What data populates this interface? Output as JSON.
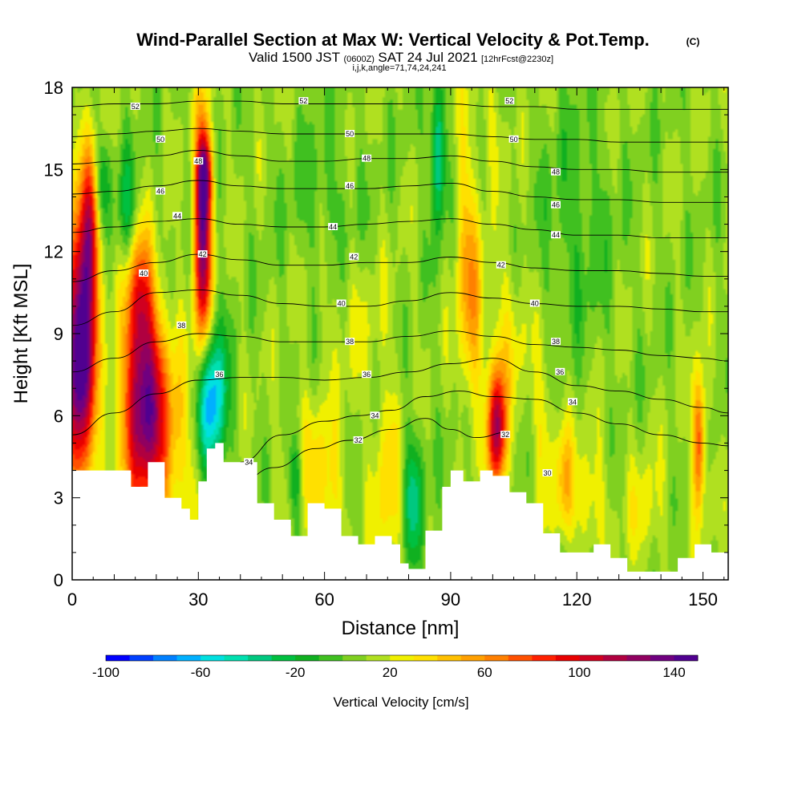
{
  "title": {
    "main": "Wind-Parallel Section at Max W: Vertical Velocity & Pot.Temp.",
    "copyright": "(C)",
    "valid_a": "Valid 1500 JST",
    "valid_utc": "(0600Z)",
    "valid_b": "SAT 24 Jul 2021",
    "fcst": "[12hrFcst@2230z]",
    "indices": "i,j,k,angle=71,74,24,241"
  },
  "chart_data": {
    "type": "heatmap",
    "xlabel": "Distance [nm]",
    "ylabel": "Height [Kft MSL]",
    "xlim": [
      0,
      156
    ],
    "ylim": [
      0,
      18
    ],
    "xticks": [
      0,
      30,
      60,
      90,
      120,
      150
    ],
    "yticks": [
      0,
      3,
      6,
      9,
      12,
      15,
      18
    ],
    "colorbar": {
      "label": "Vertical Velocity [cm/s]",
      "range": [
        -100,
        150
      ],
      "step": 10,
      "tick_values": [
        -100,
        -60,
        -20,
        20,
        60,
        100,
        140
      ],
      "tick_labels": [
        "-100",
        "-60",
        "-20",
        "20",
        "60",
        "100",
        "140"
      ],
      "colors": [
        "#0000ff",
        "#0040ff",
        "#0080ff",
        "#00b0ff",
        "#00e0e0",
        "#00e0b0",
        "#00c880",
        "#00c040",
        "#10b020",
        "#40c020",
        "#80d020",
        "#b0e020",
        "#f0f000",
        "#ffe000",
        "#ffc000",
        "#ffa000",
        "#ff8000",
        "#ff5000",
        "#ff2000",
        "#e80000",
        "#d00020",
        "#b00040",
        "#900060",
        "#700080",
        "#500090"
      ]
    },
    "terrain_kft": [
      [
        0,
        4
      ],
      [
        10,
        4
      ],
      [
        14,
        3.4
      ],
      [
        18,
        4.3
      ],
      [
        22,
        3
      ],
      [
        26,
        2.6
      ],
      [
        28,
        2.2
      ],
      [
        30,
        3.6
      ],
      [
        32,
        4.8
      ],
      [
        34,
        5
      ],
      [
        36,
        4.3
      ],
      [
        40,
        4.3
      ],
      [
        44,
        2.8
      ],
      [
        48,
        2.2
      ],
      [
        52,
        1.6
      ],
      [
        56,
        2.8
      ],
      [
        60,
        2.6
      ],
      [
        64,
        1.6
      ],
      [
        68,
        1.3
      ],
      [
        72,
        1.6
      ],
      [
        76,
        1.3
      ],
      [
        78,
        0.6
      ],
      [
        80,
        0.4
      ],
      [
        84,
        1.8
      ],
      [
        88,
        3.4
      ],
      [
        90,
        4
      ],
      [
        93,
        3.6
      ],
      [
        97,
        4
      ],
      [
        100,
        3.8
      ],
      [
        104,
        3.2
      ],
      [
        108,
        2.8
      ],
      [
        112,
        1.7
      ],
      [
        116,
        1
      ],
      [
        120,
        1
      ],
      [
        124,
        1.3
      ],
      [
        128,
        0.8
      ],
      [
        132,
        0.3
      ],
      [
        140,
        0.3
      ],
      [
        144,
        0.8
      ],
      [
        148,
        1.3
      ],
      [
        152,
        1
      ],
      [
        156,
        1
      ]
    ],
    "updrafts": [
      {
        "x": 2,
        "y": 8.5,
        "w": 160,
        "sx": 2.4,
        "sy": 3.3
      },
      {
        "x": 4.5,
        "y": 13,
        "w": 70,
        "sx": 1.5,
        "sy": 2
      },
      {
        "x": 17,
        "y": 7,
        "w": 100,
        "sx": 3.2,
        "sy": 2.6
      },
      {
        "x": 16,
        "y": 10.5,
        "w": 55,
        "sx": 2,
        "sy": 1.6
      },
      {
        "x": 20,
        "y": 5,
        "w": 50,
        "sx": 6,
        "sy": 2.5
      },
      {
        "x": 31,
        "y": 12.5,
        "w": 125,
        "sx": 1.4,
        "sy": 3
      },
      {
        "x": 31.5,
        "y": 14.8,
        "w": 70,
        "sx": 1.2,
        "sy": 1
      },
      {
        "x": 33,
        "y": 6.5,
        "w": -85,
        "sx": 2.5,
        "sy": 1.8
      },
      {
        "x": 7,
        "y": 14.5,
        "w": -35,
        "sx": 1.4,
        "sy": 1.2
      },
      {
        "x": 13,
        "y": 13.5,
        "w": -30,
        "sx": 1.6,
        "sy": 1.5
      },
      {
        "x": 53,
        "y": 3.8,
        "w": -35,
        "sx": 1.2,
        "sy": 1.1
      },
      {
        "x": 56,
        "y": 5,
        "w": 15,
        "sx": 5,
        "sy": 1.5
      },
      {
        "x": 60,
        "y": 3,
        "w": 25,
        "sx": 3,
        "sy": 1.5
      },
      {
        "x": 75,
        "y": 3.5,
        "w": 28,
        "sx": 2.5,
        "sy": 2.5
      },
      {
        "x": 81,
        "y": 3,
        "w": -40,
        "sx": 1.8,
        "sy": 1.7
      },
      {
        "x": 87,
        "y": 15.5,
        "w": -55,
        "sx": 1.2,
        "sy": 1.8
      },
      {
        "x": 95,
        "y": 10,
        "w": 45,
        "sx": 2,
        "sy": 2.6
      },
      {
        "x": 93,
        "y": 14,
        "w": 20,
        "sx": 1.5,
        "sy": 3
      },
      {
        "x": 101,
        "y": 5.5,
        "w": 115,
        "sx": 1.5,
        "sy": 1.6
      },
      {
        "x": 104,
        "y": 9,
        "w": 20,
        "sx": 3,
        "sy": 2
      },
      {
        "x": 112,
        "y": 5.5,
        "w": 20,
        "sx": 2,
        "sy": 2
      },
      {
        "x": 117,
        "y": 3.5,
        "w": 40,
        "sx": 1.5,
        "sy": 1.5
      },
      {
        "x": 123,
        "y": 3,
        "w": 25,
        "sx": 2.5,
        "sy": 1.5
      },
      {
        "x": 136,
        "y": 2.5,
        "w": 18,
        "sx": 3,
        "sy": 1.5
      },
      {
        "x": 149,
        "y": 5,
        "w": 75,
        "sx": 1,
        "sy": 1.8
      },
      {
        "x": 60,
        "y": 14,
        "w": -12,
        "sx": 6,
        "sy": 2
      },
      {
        "x": 120,
        "y": 13,
        "w": -15,
        "sx": 6,
        "sy": 3
      },
      {
        "x": 100,
        "y": 16.5,
        "w": 12,
        "sx": 3,
        "sy": 1.5
      },
      {
        "x": 67,
        "y": 9.5,
        "w": 10,
        "sx": 6,
        "sy": 2
      }
    ],
    "isentropes_kft": [
      {
        "label": "32",
        "points": [
          [
            40,
            3.6
          ],
          [
            48,
            4.1
          ],
          [
            58,
            4.8
          ],
          [
            66,
            5.1
          ],
          [
            76,
            5.5
          ],
          [
            84,
            5.9
          ],
          [
            90,
            5.5
          ],
          [
            96,
            5.2
          ],
          [
            104,
            5.4
          ]
        ]
      },
      {
        "label": "34",
        "points": [
          [
            40,
            4.3
          ],
          [
            50,
            5.3
          ],
          [
            60,
            5.8
          ],
          [
            68,
            6
          ],
          [
            76,
            6.2
          ],
          [
            84,
            6.7
          ],
          [
            92,
            6.9
          ],
          [
            100,
            6.7
          ],
          [
            110,
            6.6
          ],
          [
            120,
            6.1
          ],
          [
            130,
            5.7
          ],
          [
            140,
            5.3
          ],
          [
            150,
            5
          ],
          [
            156,
            4.9
          ]
        ]
      },
      {
        "label": "36",
        "points": [
          [
            0,
            5.3
          ],
          [
            10,
            6.1
          ],
          [
            20,
            6.8
          ],
          [
            30,
            7.3
          ],
          [
            40,
            7.4
          ],
          [
            50,
            7.4
          ],
          [
            60,
            7.3
          ],
          [
            70,
            7.4
          ],
          [
            80,
            7.6
          ],
          [
            90,
            7.9
          ],
          [
            100,
            8.1
          ],
          [
            110,
            7.6
          ],
          [
            120,
            7.1
          ],
          [
            130,
            6.9
          ],
          [
            140,
            6.6
          ],
          [
            150,
            6.3
          ],
          [
            156,
            6.1
          ]
        ]
      },
      {
        "label": "38",
        "points": [
          [
            0,
            7.6
          ],
          [
            10,
            8.1
          ],
          [
            20,
            8.7
          ],
          [
            30,
            9
          ],
          [
            40,
            8.9
          ],
          [
            50,
            8.7
          ],
          [
            60,
            8.7
          ],
          [
            70,
            8.7
          ],
          [
            80,
            8.9
          ],
          [
            90,
            9.1
          ],
          [
            100,
            8.9
          ],
          [
            110,
            8.6
          ],
          [
            120,
            8.5
          ],
          [
            130,
            8.4
          ],
          [
            140,
            8.2
          ],
          [
            150,
            8.1
          ],
          [
            156,
            8
          ]
        ]
      },
      {
        "label": "40",
        "points": [
          [
            0,
            9.3
          ],
          [
            10,
            9.8
          ],
          [
            20,
            10.5
          ],
          [
            30,
            10.6
          ],
          [
            40,
            10.4
          ],
          [
            50,
            10.1
          ],
          [
            60,
            10
          ],
          [
            70,
            10
          ],
          [
            80,
            10.2
          ],
          [
            90,
            10.5
          ],
          [
            100,
            10.3
          ],
          [
            110,
            10.1
          ],
          [
            120,
            10
          ],
          [
            130,
            10
          ],
          [
            140,
            9.9
          ],
          [
            150,
            9.8
          ],
          [
            156,
            9.8
          ]
        ]
      },
      {
        "label": "42",
        "points": [
          [
            0,
            10.9
          ],
          [
            10,
            11.3
          ],
          [
            20,
            11.6
          ],
          [
            30,
            11.9
          ],
          [
            40,
            11.7
          ],
          [
            50,
            11.5
          ],
          [
            60,
            11.5
          ],
          [
            70,
            11.6
          ],
          [
            80,
            11.6
          ],
          [
            90,
            11.8
          ],
          [
            100,
            11.6
          ],
          [
            110,
            11.4
          ],
          [
            120,
            11.3
          ],
          [
            130,
            11.3
          ],
          [
            140,
            11.2
          ],
          [
            150,
            11.1
          ],
          [
            156,
            11.1
          ]
        ]
      },
      {
        "label": "44",
        "points": [
          [
            0,
            12.7
          ],
          [
            10,
            12.9
          ],
          [
            20,
            13.1
          ],
          [
            30,
            13.2
          ],
          [
            40,
            13
          ],
          [
            50,
            12.9
          ],
          [
            60,
            12.9
          ],
          [
            70,
            13
          ],
          [
            80,
            13.1
          ],
          [
            90,
            13.2
          ],
          [
            100,
            13
          ],
          [
            110,
            12.8
          ],
          [
            120,
            12.6
          ],
          [
            130,
            12.6
          ],
          [
            140,
            12.5
          ],
          [
            150,
            12.5
          ],
          [
            156,
            12.5
          ]
        ]
      },
      {
        "label": "46",
        "points": [
          [
            0,
            14.1
          ],
          [
            10,
            14.2
          ],
          [
            20,
            14.4
          ],
          [
            30,
            14.6
          ],
          [
            40,
            14.4
          ],
          [
            50,
            14.3
          ],
          [
            60,
            14.3
          ],
          [
            70,
            14.3
          ],
          [
            80,
            14.4
          ],
          [
            90,
            14.5
          ],
          [
            100,
            14.2
          ],
          [
            110,
            14
          ],
          [
            120,
            13.9
          ],
          [
            130,
            13.9
          ],
          [
            140,
            13.8
          ],
          [
            150,
            13.8
          ],
          [
            156,
            13.8
          ]
        ]
      },
      {
        "label": "48",
        "points": [
          [
            0,
            15.2
          ],
          [
            10,
            15.3
          ],
          [
            20,
            15.5
          ],
          [
            30,
            15.7
          ],
          [
            40,
            15.5
          ],
          [
            50,
            15.3
          ],
          [
            60,
            15.3
          ],
          [
            70,
            15.4
          ],
          [
            80,
            15.4
          ],
          [
            90,
            15.5
          ],
          [
            100,
            15.3
          ],
          [
            110,
            15.1
          ],
          [
            120,
            15
          ],
          [
            130,
            15
          ],
          [
            140,
            14.9
          ],
          [
            150,
            14.9
          ],
          [
            156,
            14.9
          ]
        ]
      },
      {
        "label": "50",
        "points": [
          [
            0,
            16.2
          ],
          [
            10,
            16.3
          ],
          [
            20,
            16.4
          ],
          [
            30,
            16.5
          ],
          [
            40,
            16.4
          ],
          [
            50,
            16.3
          ],
          [
            60,
            16.3
          ],
          [
            70,
            16.3
          ],
          [
            80,
            16.3
          ],
          [
            90,
            16.3
          ],
          [
            100,
            16.2
          ],
          [
            110,
            16.1
          ],
          [
            120,
            16.1
          ],
          [
            130,
            16
          ],
          [
            140,
            16
          ],
          [
            150,
            16
          ],
          [
            156,
            16
          ]
        ]
      },
      {
        "label": "52",
        "points": [
          [
            0,
            17.3
          ],
          [
            10,
            17.4
          ],
          [
            20,
            17.4
          ],
          [
            30,
            17.5
          ],
          [
            40,
            17.5
          ],
          [
            50,
            17.4
          ],
          [
            60,
            17.4
          ],
          [
            70,
            17.4
          ],
          [
            80,
            17.4
          ],
          [
            90,
            17.4
          ],
          [
            100,
            17.3
          ],
          [
            110,
            17.3
          ],
          [
            120,
            17.2
          ],
          [
            130,
            17.2
          ],
          [
            140,
            17.2
          ],
          [
            150,
            17.2
          ],
          [
            156,
            17.2
          ]
        ]
      }
    ],
    "contour_labels": [
      {
        "text": "52",
        "x": 15,
        "y": 17.3
      },
      {
        "text": "52",
        "x": 55,
        "y": 17.5
      },
      {
        "text": "52",
        "x": 104,
        "y": 17.5
      },
      {
        "text": "50",
        "x": 21,
        "y": 16.1
      },
      {
        "text": "50",
        "x": 66,
        "y": 16.3
      },
      {
        "text": "50",
        "x": 105,
        "y": 16.1
      },
      {
        "text": "48",
        "x": 30,
        "y": 15.3
      },
      {
        "text": "48",
        "x": 70,
        "y": 15.4
      },
      {
        "text": "48",
        "x": 115,
        "y": 14.9
      },
      {
        "text": "46",
        "x": 21,
        "y": 14.2
      },
      {
        "text": "46",
        "x": 66,
        "y": 14.4
      },
      {
        "text": "46",
        "x": 115,
        "y": 13.7
      },
      {
        "text": "44",
        "x": 25,
        "y": 13.3
      },
      {
        "text": "44",
        "x": 62,
        "y": 12.9
      },
      {
        "text": "44",
        "x": 115,
        "y": 12.6
      },
      {
        "text": "42",
        "x": 31,
        "y": 11.9
      },
      {
        "text": "42",
        "x": 67,
        "y": 11.8
      },
      {
        "text": "42",
        "x": 102,
        "y": 11.5
      },
      {
        "text": "40",
        "x": 17,
        "y": 11.2
      },
      {
        "text": "40",
        "x": 64,
        "y": 10.1
      },
      {
        "text": "40",
        "x": 110,
        "y": 10.1
      },
      {
        "text": "38",
        "x": 26,
        "y": 9.3
      },
      {
        "text": "38",
        "x": 66,
        "y": 8.7
      },
      {
        "text": "38",
        "x": 115,
        "y": 8.7
      },
      {
        "text": "36",
        "x": 35,
        "y": 7.5
      },
      {
        "text": "36",
        "x": 70,
        "y": 7.5
      },
      {
        "text": "36",
        "x": 116,
        "y": 7.6
      },
      {
        "text": "34",
        "x": 42,
        "y": 4.3
      },
      {
        "text": "34",
        "x": 72,
        "y": 6
      },
      {
        "text": "34",
        "x": 119,
        "y": 6.5
      },
      {
        "text": "32",
        "x": 68,
        "y": 5.1
      },
      {
        "text": "32",
        "x": 103,
        "y": 5.3
      },
      {
        "text": "30",
        "x": 113,
        "y": 3.9
      }
    ]
  }
}
